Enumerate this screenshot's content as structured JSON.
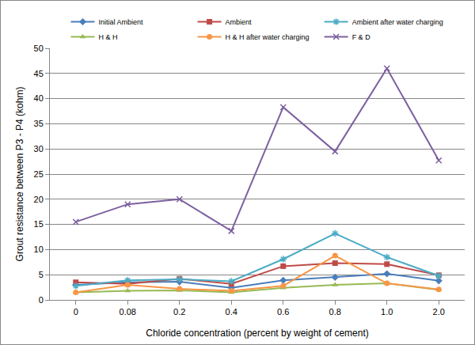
{
  "chart_data": {
    "type": "line",
    "x_label": "Chloride concentration (percent by weight of cement)",
    "y_label": "Grout resistance between P3 - P4 (kohm)",
    "categories": [
      "0",
      "0.08",
      "0.2",
      "0.4",
      "0.6",
      "0.8",
      "1.0",
      "2.0"
    ],
    "series": [
      {
        "name": "Initial Ambient",
        "color": "#4a7ebb",
        "marker": "diamond",
        "values": [
          3.0,
          3.5,
          3.6,
          2.4,
          3.9,
          4.5,
          5.2,
          3.8
        ]
      },
      {
        "name": "Ambient",
        "color": "#be4b48",
        "marker": "square",
        "values": [
          3.5,
          3.2,
          4.2,
          3.2,
          6.7,
          7.3,
          7.1,
          4.9
        ]
      },
      {
        "name": "Ambient after water charging",
        "color": "#4bacc6",
        "marker": "asterisk",
        "values": [
          2.8,
          3.9,
          4.1,
          3.7,
          8.1,
          13.2,
          8.5,
          4.8
        ]
      },
      {
        "name": "H & H",
        "color": "#98b954",
        "marker": "triangle",
        "values": [
          1.5,
          1.8,
          1.9,
          1.5,
          2.4,
          3.0,
          3.3,
          2.0
        ]
      },
      {
        "name": "H & H after water charging",
        "color": "#f79646",
        "marker": "circle",
        "values": [
          1.5,
          3.0,
          2.2,
          1.8,
          2.8,
          8.8,
          3.3,
          2.1
        ]
      },
      {
        "name": "F & D",
        "color": "#7d60a0",
        "marker": "x",
        "values": [
          15.5,
          19.0,
          20.0,
          13.7,
          38.3,
          29.5,
          46.0,
          27.7
        ]
      }
    ],
    "ylim": [
      0,
      50
    ],
    "yticks": [
      0,
      5,
      10,
      15,
      20,
      25,
      30,
      35,
      40,
      45,
      50
    ],
    "grid": true,
    "legend": "top"
  }
}
